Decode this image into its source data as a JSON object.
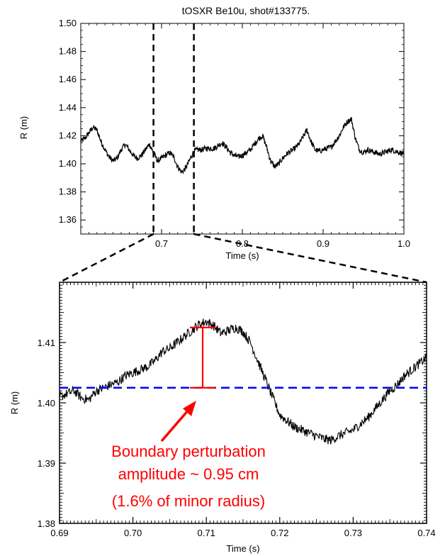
{
  "chart_data": [
    {
      "type": "line",
      "title": "tOSXR Be10u, shot#133775.",
      "xlabel": "Time (s)",
      "ylabel": "R (m)",
      "xlim": [
        0.6,
        1.0
      ],
      "ylim": [
        1.35,
        1.5
      ],
      "xticks": [
        "0.7",
        "0.8",
        "0.9",
        "1.0"
      ],
      "yticks": [
        "1.36",
        "1.38",
        "1.40",
        "1.42",
        "1.44",
        "1.46",
        "1.48",
        "1.50"
      ],
      "series": [
        {
          "color": "#000000",
          "x": [
            0.6,
            0.605,
            0.61,
            0.615,
            0.62,
            0.625,
            0.63,
            0.635,
            0.64,
            0.645,
            0.65,
            0.655,
            0.66,
            0.665,
            0.67,
            0.675,
            0.68,
            0.685,
            0.69,
            0.695,
            0.7,
            0.705,
            0.71,
            0.715,
            0.72,
            0.725,
            0.73,
            0.735,
            0.74,
            0.745,
            0.75,
            0.755,
            0.76,
            0.765,
            0.77,
            0.775,
            0.78,
            0.785,
            0.79,
            0.795,
            0.8,
            0.805,
            0.81,
            0.815,
            0.82,
            0.825,
            0.83,
            0.835,
            0.84,
            0.845,
            0.85,
            0.855,
            0.86,
            0.865,
            0.87,
            0.875,
            0.88,
            0.885,
            0.89,
            0.895,
            0.9,
            0.905,
            0.91,
            0.915,
            0.92,
            0.925,
            0.93,
            0.935,
            0.94,
            0.945,
            0.95,
            0.955,
            0.96,
            0.965,
            0.97,
            0.975,
            0.98,
            0.985,
            0.99,
            0.995,
            1.0
          ],
          "y": [
            1.416,
            1.418,
            1.422,
            1.426,
            1.424,
            1.416,
            1.41,
            1.405,
            1.402,
            1.404,
            1.41,
            1.414,
            1.41,
            1.406,
            1.404,
            1.406,
            1.41,
            1.414,
            1.408,
            1.402,
            1.404,
            1.406,
            1.408,
            1.405,
            1.398,
            1.394,
            1.397,
            1.403,
            1.409,
            1.41,
            1.41,
            1.411,
            1.411,
            1.411,
            1.413,
            1.415,
            1.412,
            1.408,
            1.406,
            1.405,
            1.406,
            1.408,
            1.41,
            1.414,
            1.418,
            1.42,
            1.412,
            1.402,
            1.398,
            1.4,
            1.404,
            1.407,
            1.409,
            1.411,
            1.414,
            1.419,
            1.424,
            1.416,
            1.41,
            1.409,
            1.41,
            1.411,
            1.412,
            1.416,
            1.42,
            1.426,
            1.43,
            1.432,
            1.418,
            1.41,
            1.408,
            1.41,
            1.409,
            1.408,
            1.407,
            1.408,
            1.409,
            1.41,
            1.409,
            1.408,
            1.407
          ]
        }
      ],
      "zoom_markers": [
        0.69,
        0.74
      ]
    },
    {
      "type": "line",
      "xlabel": "Time (s)",
      "ylabel": "R (m)",
      "xlim": [
        0.69,
        0.74
      ],
      "ylim": [
        1.38,
        1.42
      ],
      "xticks": [
        "0.69",
        "0.70",
        "0.71",
        "0.72",
        "0.73",
        "0.74"
      ],
      "yticks": [
        "1.38",
        "1.39",
        "1.40",
        "1.41"
      ],
      "series": [
        {
          "color": "#000000",
          "x": [
            0.69,
            0.691,
            0.692,
            0.693,
            0.694,
            0.695,
            0.696,
            0.697,
            0.698,
            0.699,
            0.7,
            0.701,
            0.702,
            0.703,
            0.704,
            0.705,
            0.706,
            0.707,
            0.708,
            0.709,
            0.71,
            0.711,
            0.712,
            0.713,
            0.714,
            0.715,
            0.716,
            0.717,
            0.718,
            0.719,
            0.72,
            0.721,
            0.722,
            0.723,
            0.724,
            0.725,
            0.726,
            0.727,
            0.728,
            0.729,
            0.73,
            0.731,
            0.732,
            0.733,
            0.734,
            0.735,
            0.736,
            0.737,
            0.738,
            0.739,
            0.74
          ],
          "y": [
            1.401,
            1.4015,
            1.402,
            1.4008,
            1.4005,
            1.402,
            1.4025,
            1.403,
            1.4035,
            1.4045,
            1.405,
            1.4055,
            1.406,
            1.407,
            1.4085,
            1.409,
            1.41,
            1.411,
            1.412,
            1.413,
            1.4135,
            1.4128,
            1.4115,
            1.412,
            1.4125,
            1.4118,
            1.41,
            1.407,
            1.404,
            1.401,
            1.398,
            1.397,
            1.396,
            1.3955,
            1.395,
            1.3945,
            1.394,
            1.3938,
            1.3945,
            1.395,
            1.3955,
            1.3965,
            1.3975,
            1.399,
            1.4005,
            1.402,
            1.403,
            1.4045,
            1.4055,
            1.4065,
            1.4075
          ]
        }
      ],
      "reference_line": {
        "y": 1.4025,
        "color": "#0000ff",
        "style": "dashed"
      },
      "amplitude_bar": {
        "x": 0.7095,
        "y_low": 1.4025,
        "y_high": 1.4125,
        "color": "#ff0000"
      },
      "annotation": {
        "lines": [
          "Boundary perturbation",
          "amplitude ~ 0.95 cm",
          "(1.6% of minor radius)"
        ],
        "color": "#ff0000"
      }
    }
  ]
}
